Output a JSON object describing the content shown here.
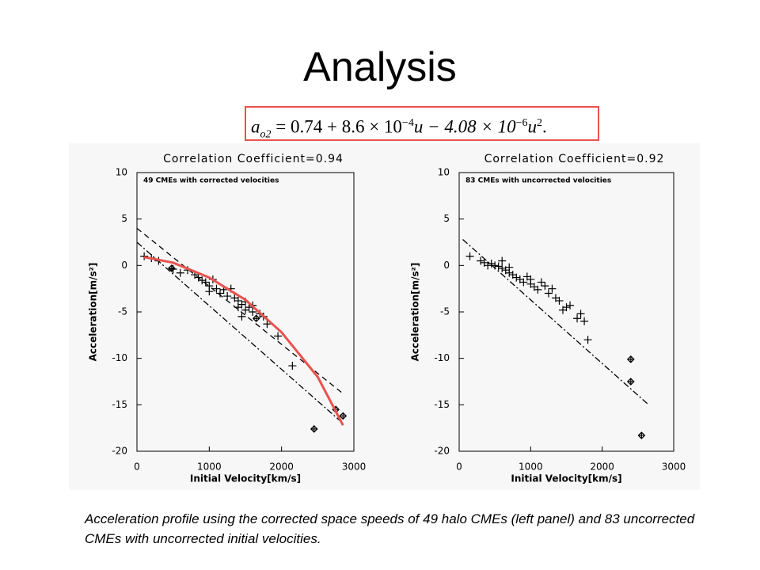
{
  "title": "Analysis",
  "equation": [
    "a",
    "o2",
    " = 0.74 + 8.6 × 10",
    "−4",
    "u − 4.08 × 10",
    "−6",
    "u",
    "2",
    "."
  ],
  "caption": "Acceleration profile using the corrected space speeds of 49 halo CMEs (left panel) and 83 uncorrected CMEs with uncorrected initial velocities.",
  "chart_data": [
    {
      "type": "scatter",
      "title": "Correlation Coefficient=0.94",
      "annotation": "49 CMEs with corrected velocities",
      "x_label": "Initial Velocity[km/s]",
      "y_label": "Acceleration[m/s²]",
      "xlim": [
        0,
        3000
      ],
      "ylim": [
        -20,
        10
      ],
      "xticks": [
        0,
        1000,
        2000,
        3000
      ],
      "yticks": [
        -20,
        -15,
        -10,
        -5,
        0,
        5,
        10
      ],
      "series": [
        {
          "marker": "plus",
          "color": "#000000",
          "x": [
            100,
            200,
            300,
            500,
            600,
            700,
            800,
            850,
            900,
            950,
            1000,
            1000,
            1050,
            1100,
            1150,
            1200,
            1250,
            1300,
            1350,
            1400,
            1400,
            1450,
            1450,
            1500,
            1500,
            1550,
            1600,
            1600,
            1700,
            1750,
            1800,
            1950,
            2150
          ],
          "values": [
            1,
            0.8,
            0.5,
            -0.4,
            -0.8,
            -0.5,
            -1,
            -1.3,
            -1.6,
            -1.8,
            -2.2,
            -2.8,
            -1.5,
            -2.5,
            -3,
            -2.6,
            -3.3,
            -2.5,
            -3.5,
            -3.8,
            -4.5,
            -4.2,
            -5.5,
            -4.8,
            -3.9,
            -4.5,
            -5,
            -4.3,
            -5.2,
            -5.5,
            -6.3,
            -7.6,
            -10.8
          ]
        },
        {
          "marker": "diamond",
          "color": "#000000",
          "x": [
            480,
            1650,
            2450,
            2750,
            2850
          ],
          "values": [
            -0.3,
            -5.7,
            -17.6,
            -15.5,
            -16.2
          ]
        },
        {
          "style": "dashed",
          "color": "#000000",
          "x": [
            0,
            2850
          ],
          "values": [
            4,
            -13.8
          ]
        },
        {
          "style": "dashdot",
          "color": "#000000",
          "x": [
            0,
            2850
          ],
          "values": [
            2.5,
            -17
          ]
        },
        {
          "style": "solid",
          "color": "#e8534f",
          "x": [
            100,
            500,
            1000,
            1500,
            2000,
            2500,
            2850
          ],
          "values": [
            0.9,
            0.3,
            -1.3,
            -3.7,
            -7.2,
            -12,
            -17.2
          ]
        }
      ]
    },
    {
      "type": "scatter",
      "title": "Correlation Coefficient=0.92",
      "annotation": "83 CMEs with uncorrected velocities",
      "x_label": "Initial Velocity[km/s]",
      "y_label": "Acceleration[m/s²]",
      "xlim": [
        0,
        3000
      ],
      "ylim": [
        -20,
        10
      ],
      "xticks": [
        0,
        1000,
        2000,
        3000
      ],
      "yticks": [
        -20,
        -15,
        -10,
        -5,
        0,
        5,
        10
      ],
      "series": [
        {
          "marker": "plus",
          "color": "#000000",
          "x": [
            150,
            300,
            350,
            400,
            450,
            500,
            550,
            600,
            600,
            650,
            700,
            700,
            750,
            800,
            850,
            900,
            950,
            1000,
            1000,
            1050,
            1100,
            1150,
            1200,
            1250,
            1300,
            1350,
            1400,
            1450,
            1500,
            1550,
            1650,
            1700,
            1750,
            1800
          ],
          "values": [
            1,
            0.5,
            0.3,
            0,
            0.2,
            0,
            -0.1,
            0.5,
            -0.3,
            -0.5,
            -0.2,
            -0.8,
            -1,
            -1.3,
            -1.5,
            -1.8,
            -1.2,
            -2,
            -1.5,
            -2.3,
            -2.6,
            -1.8,
            -2.2,
            -3,
            -2.5,
            -3.5,
            -3.8,
            -4.8,
            -4.5,
            -4.3,
            -5.7,
            -5.2,
            -6,
            -8
          ]
        },
        {
          "marker": "diamond",
          "color": "#000000",
          "x": [
            2400,
            2400,
            2550
          ],
          "values": [
            -10.1,
            -12.5,
            -18.3
          ]
        },
        {
          "style": "dashdot",
          "color": "#000000",
          "x": [
            50,
            2650
          ],
          "values": [
            2.8,
            -15
          ]
        }
      ]
    }
  ]
}
